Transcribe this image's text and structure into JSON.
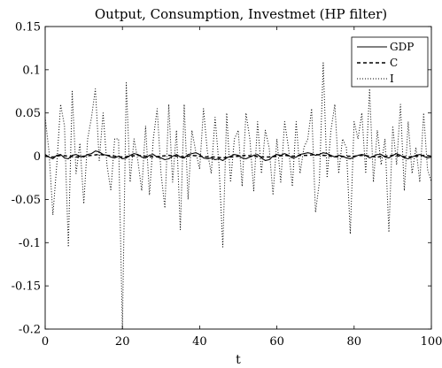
{
  "chart_data": {
    "type": "line",
    "title": "Output, Consumption, Investmet (HP filter)",
    "xlabel": "t",
    "ylabel": "",
    "xlim": [
      0,
      100
    ],
    "ylim": [
      -0.2,
      0.15
    ],
    "xticks": [
      0,
      20,
      40,
      60,
      80,
      100
    ],
    "xtick_labels": [
      "0",
      "20",
      "40",
      "60",
      "80",
      "100"
    ],
    "yticks": [
      -0.2,
      -0.15,
      -0.1,
      -0.05,
      0,
      0.05,
      0.1,
      0.15
    ],
    "ytick_labels": [
      "-0.2",
      "-0.15",
      "-0.1",
      "-0.05",
      "0",
      "0.05",
      "0.1",
      "0.15"
    ],
    "grid": false,
    "legend_position": "top-right",
    "colors": {
      "line": "#000000",
      "axes": "#000000",
      "background": "#ffffff"
    },
    "series": [
      {
        "name": "GDP",
        "style": "solid",
        "x": [
          0,
          1,
          2,
          3,
          4,
          5,
          6,
          7,
          8,
          9,
          10,
          11,
          12,
          13,
          14,
          15,
          16,
          17,
          18,
          19,
          20,
          21,
          22,
          23,
          24,
          25,
          26,
          27,
          28,
          29,
          30,
          31,
          32,
          33,
          34,
          35,
          36,
          37,
          38,
          39,
          40,
          41,
          42,
          43,
          44,
          45,
          46,
          47,
          48,
          49,
          50,
          51,
          52,
          53,
          54,
          55,
          56,
          57,
          58,
          59,
          60,
          61,
          62,
          63,
          64,
          65,
          66,
          67,
          68,
          69,
          70,
          71,
          72,
          73,
          74,
          75,
          76,
          77,
          78,
          79,
          80,
          81,
          82,
          83,
          84,
          85,
          86,
          87,
          88,
          89,
          90,
          91,
          92,
          93,
          94,
          95,
          96,
          97,
          98,
          99,
          100
        ],
        "values": [
          0.002,
          -0.001,
          -0.003,
          0.001,
          0.002,
          -0.002,
          -0.003,
          0.001,
          0.002,
          0.0,
          -0.001,
          0.002,
          0.003,
          0.006,
          0.005,
          0.002,
          0.001,
          -0.001,
          -0.002,
          0.0,
          -0.003,
          -0.002,
          0.001,
          0.003,
          0.002,
          -0.001,
          -0.002,
          0.001,
          0.002,
          -0.001,
          -0.002,
          -0.004,
          -0.003,
          0.0,
          0.002,
          -0.001,
          -0.002,
          0.002,
          0.003,
          0.004,
          0.002,
          -0.002,
          -0.003,
          -0.002,
          -0.004,
          -0.003,
          -0.005,
          -0.002,
          0.0,
          0.002,
          0.001,
          -0.002,
          -0.003,
          -0.001,
          0.001,
          0.002,
          -0.002,
          -0.005,
          -0.004,
          0.0,
          0.002,
          0.001,
          0.003,
          0.001,
          -0.002,
          -0.001,
          0.002,
          0.003,
          0.004,
          0.003,
          0.001,
          0.002,
          0.004,
          0.003,
          0.001,
          -0.001,
          0.001,
          0.0,
          -0.002,
          -0.003,
          -0.001,
          0.001,
          0.002,
          0.001,
          -0.002,
          0.0,
          0.002,
          0.002,
          -0.001,
          -0.002,
          0.001,
          0.003,
          0.001,
          -0.002,
          -0.003,
          -0.001,
          0.001,
          0.002,
          0.0,
          -0.002,
          -0.001
        ]
      },
      {
        "name": "C",
        "style": "dashed",
        "x": [
          0,
          2,
          4,
          6,
          8,
          10,
          12,
          14,
          16,
          18,
          20,
          22,
          24,
          26,
          28,
          30,
          32,
          34,
          36,
          38,
          40,
          42,
          44,
          46,
          48,
          50,
          52,
          54,
          56,
          58,
          60,
          62,
          64,
          66,
          68,
          70,
          72,
          74,
          76,
          78,
          80,
          82,
          84,
          86,
          88,
          90,
          92,
          94,
          96,
          98,
          100
        ],
        "values": [
          0.0,
          -0.001,
          0.001,
          0.0,
          -0.001,
          0.0,
          0.001,
          0.002,
          0.001,
          0.0,
          -0.001,
          0.0,
          0.001,
          0.0,
          -0.001,
          0.0,
          0.001,
          0.0,
          -0.001,
          0.001,
          0.0,
          -0.001,
          -0.001,
          -0.002,
          -0.001,
          0.0,
          0.001,
          0.0,
          -0.001,
          -0.001,
          0.0,
          0.001,
          0.0,
          0.001,
          0.001,
          0.002,
          0.001,
          0.0,
          -0.001,
          0.0,
          0.0,
          0.001,
          0.0,
          -0.001,
          0.0,
          0.001,
          0.0,
          -0.001,
          0.0,
          0.001,
          0.0
        ]
      },
      {
        "name": "I",
        "style": "dotted",
        "x": [
          0,
          1,
          2,
          3,
          4,
          5,
          6,
          7,
          8,
          9,
          10,
          11,
          12,
          13,
          14,
          15,
          16,
          17,
          18,
          19,
          20,
          21,
          22,
          23,
          24,
          25,
          26,
          27,
          28,
          29,
          30,
          31,
          32,
          33,
          34,
          35,
          36,
          37,
          38,
          39,
          40,
          41,
          42,
          43,
          44,
          45,
          46,
          47,
          48,
          49,
          50,
          51,
          52,
          53,
          54,
          55,
          56,
          57,
          58,
          59,
          60,
          61,
          62,
          63,
          64,
          65,
          66,
          67,
          68,
          69,
          70,
          71,
          72,
          73,
          74,
          75,
          76,
          77,
          78,
          79,
          80,
          81,
          82,
          83,
          84,
          85,
          86,
          87,
          88,
          89,
          90,
          91,
          92,
          93,
          94,
          95,
          96,
          97,
          98,
          99,
          100
        ],
        "values": [
          0.045,
          0.005,
          -0.068,
          -0.01,
          0.06,
          0.035,
          -0.105,
          0.075,
          -0.02,
          0.015,
          -0.055,
          0.02,
          0.045,
          0.078,
          -0.005,
          0.05,
          -0.01,
          -0.04,
          0.02,
          0.02,
          -0.2,
          0.085,
          -0.03,
          0.02,
          -0.005,
          -0.04,
          0.035,
          -0.045,
          0.02,
          0.055,
          -0.02,
          -0.06,
          0.06,
          -0.03,
          0.03,
          -0.085,
          0.06,
          -0.05,
          0.03,
          0.005,
          -0.015,
          0.055,
          0.005,
          -0.02,
          0.045,
          -0.01,
          -0.105,
          0.05,
          -0.03,
          0.02,
          0.03,
          -0.035,
          0.05,
          0.02,
          -0.04,
          0.04,
          -0.02,
          0.03,
          0.01,
          -0.045,
          0.02,
          -0.03,
          0.04,
          0.01,
          -0.035,
          0.04,
          -0.02,
          0.01,
          0.02,
          0.055,
          -0.065,
          -0.03,
          0.108,
          -0.025,
          0.03,
          0.06,
          -0.02,
          0.02,
          0.01,
          -0.09,
          0.04,
          0.02,
          0.05,
          -0.02,
          0.078,
          -0.03,
          0.03,
          -0.01,
          0.02,
          -0.088,
          0.035,
          -0.01,
          0.06,
          -0.04,
          0.04,
          -0.02,
          0.01,
          -0.03,
          0.05,
          -0.015,
          -0.03
        ]
      }
    ]
  }
}
